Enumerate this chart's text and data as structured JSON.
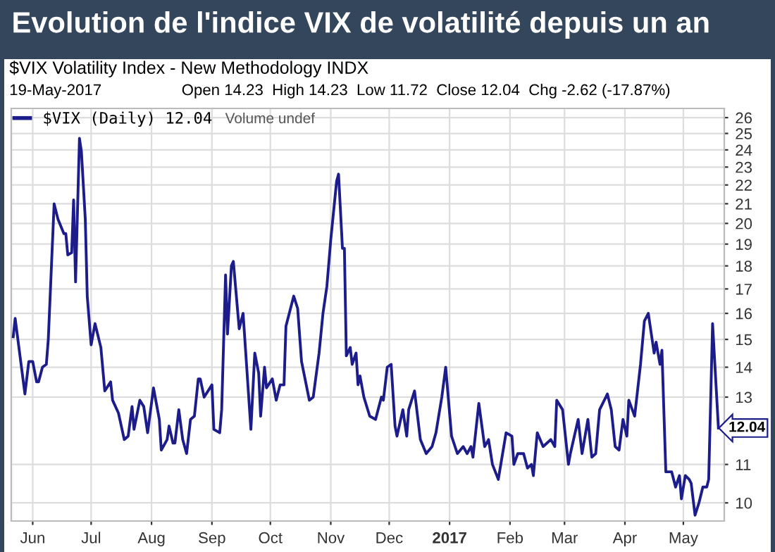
{
  "chart_data": {
    "type": "line",
    "title": "Evolution de l'indice VIX de volatilité depuis un an",
    "subtitle": "$VIX Volatility Index - New Methodology INDX",
    "annotations": [
      "19-May-2017",
      "Open 14.23  High 14.23  Low 11.72  Close 12.04  Chg -2.62 (-17.87%)",
      "Volume undef",
      {
        "text": "12.04",
        "x": "2017-05-19",
        "y": 12.04
      }
    ],
    "series": [
      {
        "name": "$VIX (Daily) 12.04",
        "color": "#1c1c8a",
        "x": [
          "2016-05-22",
          "2016-05-23",
          "2016-05-28",
          "2016-05-30",
          "2016-06-01",
          "2016-06-03",
          "2016-06-04",
          "2016-06-06",
          "2016-06-08",
          "2016-06-09",
          "2016-06-12",
          "2016-06-14",
          "2016-06-17",
          "2016-06-18",
          "2016-06-19",
          "2016-06-21",
          "2016-06-22",
          "2016-06-23",
          "2016-06-25",
          "2016-06-26",
          "2016-06-28",
          "2016-06-29",
          "2016-07-01",
          "2016-07-03",
          "2016-07-06",
          "2016-07-08",
          "2016-07-11",
          "2016-07-12",
          "2016-07-15",
          "2016-07-18",
          "2016-07-20",
          "2016-07-22",
          "2016-07-23",
          "2016-07-26",
          "2016-07-28",
          "2016-07-30",
          "2016-08-02",
          "2016-08-05",
          "2016-08-06",
          "2016-08-09",
          "2016-08-10",
          "2016-08-12",
          "2016-08-13",
          "2016-08-15",
          "2016-08-17",
          "2016-08-19",
          "2016-08-21",
          "2016-08-23",
          "2016-08-25",
          "2016-08-26",
          "2016-08-28",
          "2016-09-01",
          "2016-09-02",
          "2016-09-05",
          "2016-09-06",
          "2016-09-08",
          "2016-09-09",
          "2016-09-11",
          "2016-09-12",
          "2016-09-15",
          "2016-09-17",
          "2016-09-21",
          "2016-09-23",
          "2016-09-25",
          "2016-09-26",
          "2016-09-28",
          "2016-09-29",
          "2016-10-02",
          "2016-10-04",
          "2016-10-06",
          "2016-10-08",
          "2016-10-09",
          "2016-10-13",
          "2016-10-15",
          "2016-10-17",
          "2016-10-21",
          "2016-10-23",
          "2016-10-26",
          "2016-10-28",
          "2016-10-30",
          "2016-11-01",
          "2016-11-04",
          "2016-11-05",
          "2016-11-07",
          "2016-11-08",
          "2016-11-09",
          "2016-11-11",
          "2016-11-12",
          "2016-11-14",
          "2016-11-15",
          "2016-11-16",
          "2016-11-18",
          "2016-11-21",
          "2016-11-24",
          "2016-11-27",
          "2016-11-28",
          "2016-11-30",
          "2016-12-02",
          "2016-12-04",
          "2016-12-05",
          "2016-12-08",
          "2016-12-10",
          "2016-12-11",
          "2016-12-14",
          "2016-12-17",
          "2016-12-20",
          "2016-12-23",
          "2016-12-25",
          "2016-12-28",
          "2016-12-30",
          "2017-01-02",
          "2017-01-05",
          "2017-01-08",
          "2017-01-10",
          "2017-01-12",
          "2017-01-13",
          "2017-01-16",
          "2017-01-19",
          "2017-01-21",
          "2017-01-23",
          "2017-01-26",
          "2017-01-30",
          "2017-02-02",
          "2017-02-03",
          "2017-02-05",
          "2017-02-08",
          "2017-02-10",
          "2017-02-12",
          "2017-02-13",
          "2017-02-15",
          "2017-02-18",
          "2017-02-22",
          "2017-02-24",
          "2017-02-25",
          "2017-02-28",
          "2017-03-03",
          "2017-03-04",
          "2017-03-08",
          "2017-03-10",
          "2017-03-13",
          "2017-03-15",
          "2017-03-17",
          "2017-03-19",
          "2017-03-23",
          "2017-03-25",
          "2017-03-27",
          "2017-03-29",
          "2017-03-31",
          "2017-04-02",
          "2017-04-03",
          "2017-04-06",
          "2017-04-09",
          "2017-04-11",
          "2017-04-13",
          "2017-04-16",
          "2017-04-17",
          "2017-04-19",
          "2017-04-20",
          "2017-04-22",
          "2017-04-25",
          "2017-04-27",
          "2017-04-29",
          "2017-04-30",
          "2017-05-02",
          "2017-05-04",
          "2017-05-05",
          "2017-05-07",
          "2017-05-09",
          "2017-05-11",
          "2017-05-13",
          "2017-05-14",
          "2017-05-16",
          "2017-05-19"
        ],
        "values": [
          15.1,
          15.8,
          13.1,
          14.2,
          14.2,
          13.5,
          13.5,
          14.0,
          14.1,
          15.0,
          21.0,
          20.2,
          19.5,
          19.5,
          18.5,
          18.6,
          21.2,
          17.3,
          24.7,
          23.9,
          20.2,
          16.7,
          14.8,
          15.6,
          14.7,
          13.2,
          13.5,
          12.9,
          12.5,
          11.7,
          11.8,
          12.7,
          12.0,
          12.9,
          12.7,
          11.9,
          13.3,
          12.3,
          11.4,
          11.7,
          12.1,
          11.6,
          11.6,
          12.6,
          11.7,
          11.3,
          12.3,
          12.4,
          13.6,
          13.6,
          13.0,
          13.4,
          12.0,
          11.9,
          12.6,
          17.6,
          15.2,
          18.0,
          18.2,
          15.4,
          16.0,
          12.0,
          14.5,
          13.8,
          12.4,
          14.0,
          13.3,
          13.6,
          12.9,
          13.4,
          13.4,
          15.5,
          16.7,
          16.2,
          14.2,
          12.9,
          13.0,
          14.5,
          16.0,
          17.1,
          19.2,
          22.2,
          22.6,
          18.8,
          18.8,
          14.4,
          14.7,
          14.1,
          14.5,
          13.4,
          13.7,
          13.0,
          12.4,
          12.3,
          13.0,
          12.9,
          14.0,
          14.1,
          12.1,
          11.8,
          12.6,
          11.8,
          12.6,
          13.2,
          11.7,
          11.3,
          11.5,
          11.9,
          13.0,
          14.0,
          11.8,
          11.3,
          11.5,
          11.3,
          11.5,
          11.2,
          12.8,
          11.5,
          11.7,
          11.0,
          10.6,
          11.9,
          11.8,
          11.0,
          11.3,
          11.3,
          10.9,
          11.0,
          10.7,
          11.9,
          11.5,
          11.7,
          11.5,
          12.9,
          12.6,
          11.0,
          11.3,
          12.3,
          11.3,
          12.3,
          11.2,
          11.3,
          12.6,
          13.1,
          12.6,
          11.5,
          11.4,
          12.3,
          11.8,
          12.9,
          12.4,
          14.1,
          15.7,
          16.0,
          14.5,
          14.9,
          14.1,
          14.6,
          10.8,
          10.8,
          10.4,
          10.7,
          10.1,
          10.7,
          10.6,
          10.5,
          9.7,
          10.0,
          10.4,
          10.4,
          10.6,
          15.6,
          12.04
        ]
      }
    ],
    "log": "y",
    "ylim": [
      9.56,
      26.6
    ],
    "yticks": [
      10,
      11,
      13,
      14,
      15,
      16,
      17,
      18,
      19,
      20,
      21,
      22,
      23,
      24,
      25,
      26
    ],
    "xlim": [
      "2016-05-21",
      "2017-05-22"
    ],
    "xticks": [
      {
        "value": "2016-06-01",
        "label": "Jun"
      },
      {
        "value": "2016-07-01",
        "label": "Jul"
      },
      {
        "value": "2016-08-01",
        "label": "Aug"
      },
      {
        "value": "2016-09-01",
        "label": "Sep"
      },
      {
        "value": "2016-10-01",
        "label": "Oct"
      },
      {
        "value": "2016-11-01",
        "label": "Nov"
      },
      {
        "value": "2016-12-01",
        "label": "Dec"
      },
      {
        "value": "2017-01-01",
        "label": "2017"
      },
      {
        "value": "2017-02-01",
        "label": "Feb"
      },
      {
        "value": "2017-03-01",
        "label": "Mar"
      },
      {
        "value": "2017-04-01",
        "label": "Apr"
      },
      {
        "value": "2017-05-01",
        "label": "May"
      }
    ],
    "grid": true,
    "legend": "top left",
    "marker": "none",
    "line_style": "solid"
  }
}
